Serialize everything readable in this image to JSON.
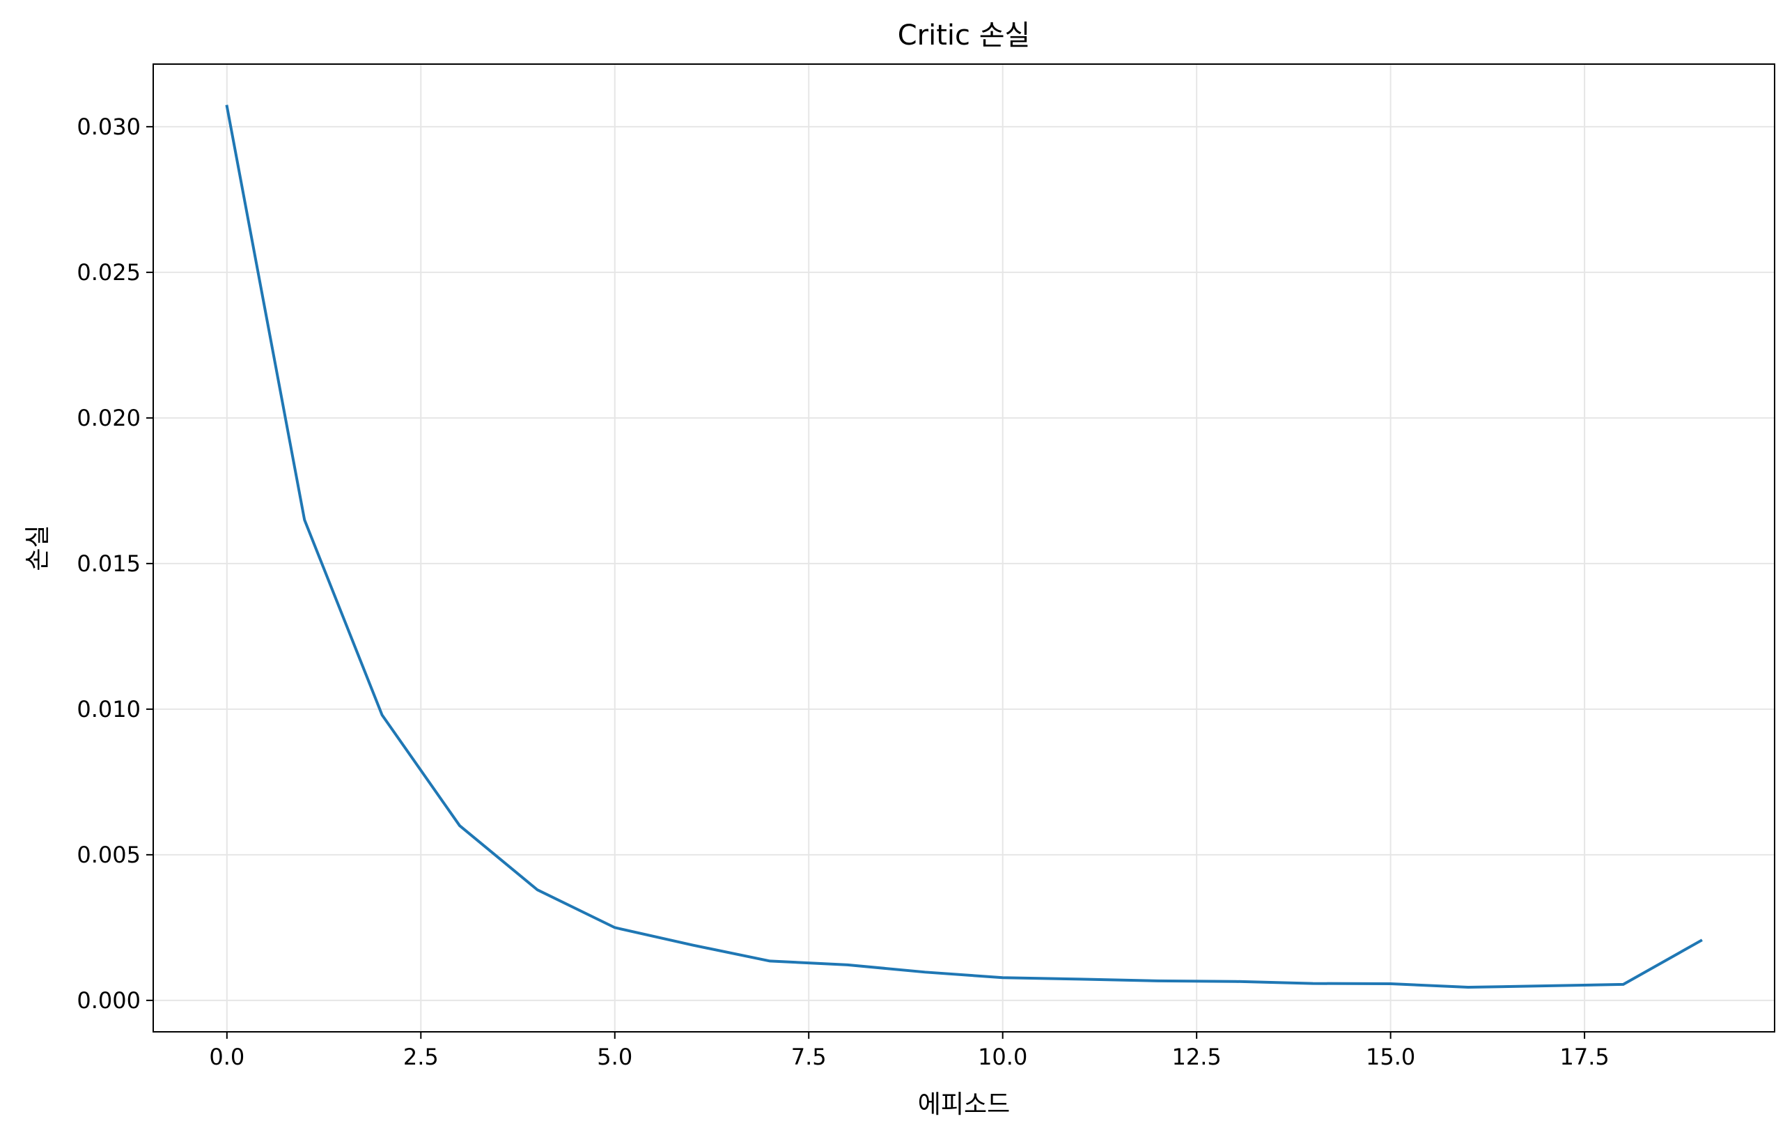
{
  "chart_data": {
    "type": "line",
    "title": "Critic 손실",
    "xlabel": "에피소드",
    "ylabel": "손실",
    "xlim": [
      -0.95,
      19.95
    ],
    "ylim": [
      -0.00108,
      0.03215
    ],
    "xticks": [
      0,
      2.5,
      5,
      7.5,
      10,
      12.5,
      15,
      17.5
    ],
    "xtick_labels": [
      "0.0",
      "2.5",
      "5.0",
      "7.5",
      "10.0",
      "12.5",
      "15.0",
      "17.5"
    ],
    "yticks": [
      0,
      0.005,
      0.01,
      0.015,
      0.02,
      0.025,
      0.03
    ],
    "ytick_labels": [
      "0.000",
      "0.005",
      "0.010",
      "0.015",
      "0.020",
      "0.025",
      "0.030"
    ],
    "grid": true,
    "line_color": "#1f77b4",
    "grid_color": "#e6e6e6",
    "series": [
      {
        "x": [
          0,
          1,
          2,
          3,
          4,
          5,
          6,
          7,
          8,
          9,
          10,
          11,
          12,
          13,
          14,
          15,
          16,
          17,
          18,
          19
        ],
        "values": [
          0.0307,
          0.0165,
          0.0098,
          0.006,
          0.0038,
          0.0025,
          0.0019,
          0.00135,
          0.00122,
          0.00097,
          0.00078,
          0.00073,
          0.00067,
          0.00065,
          0.00058,
          0.00057,
          0.00045,
          0.0005,
          0.00055,
          0.00205
        ]
      }
    ]
  }
}
